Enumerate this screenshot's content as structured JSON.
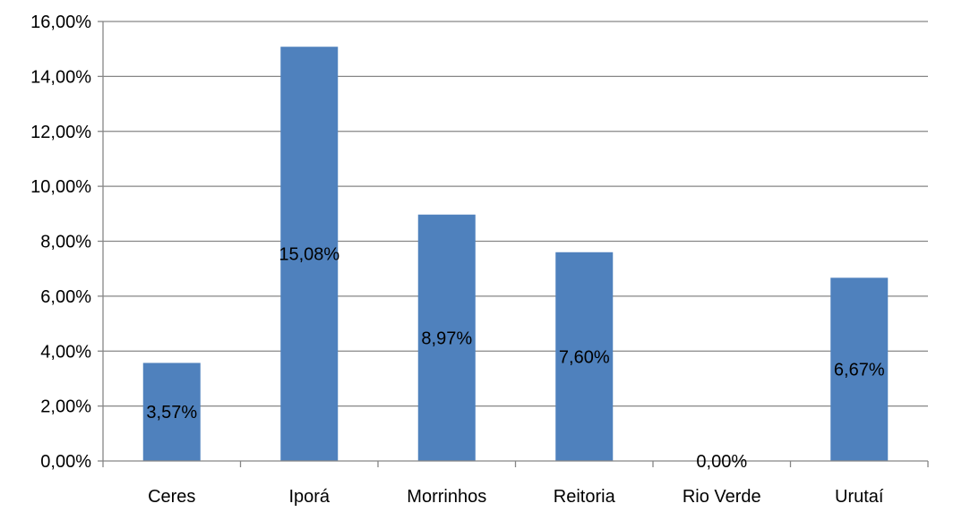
{
  "chart_data": {
    "type": "bar",
    "categories": [
      "Ceres",
      "Iporá",
      "Morrinhos",
      "Reitoria",
      "Rio Verde",
      "Urutaí"
    ],
    "values": [
      3.57,
      15.08,
      8.97,
      7.6,
      0.0,
      6.67
    ],
    "data_labels": [
      "3,57%",
      "15,08%",
      "8,97%",
      "7,60%",
      "0,00%",
      "6,67%"
    ],
    "ylim": [
      0,
      16
    ],
    "yticks": [
      0,
      2,
      4,
      6,
      8,
      10,
      12,
      14,
      16
    ],
    "ytick_labels": [
      "0,00%",
      "2,00%",
      "4,00%",
      "6,00%",
      "8,00%",
      "10,00%",
      "12,00%",
      "14,00%",
      "16,00%"
    ],
    "grid": true,
    "legend": "none",
    "bar_color": "#4F81BD",
    "grid_color": "#868686",
    "title": "",
    "xlabel": "",
    "ylabel": ""
  }
}
